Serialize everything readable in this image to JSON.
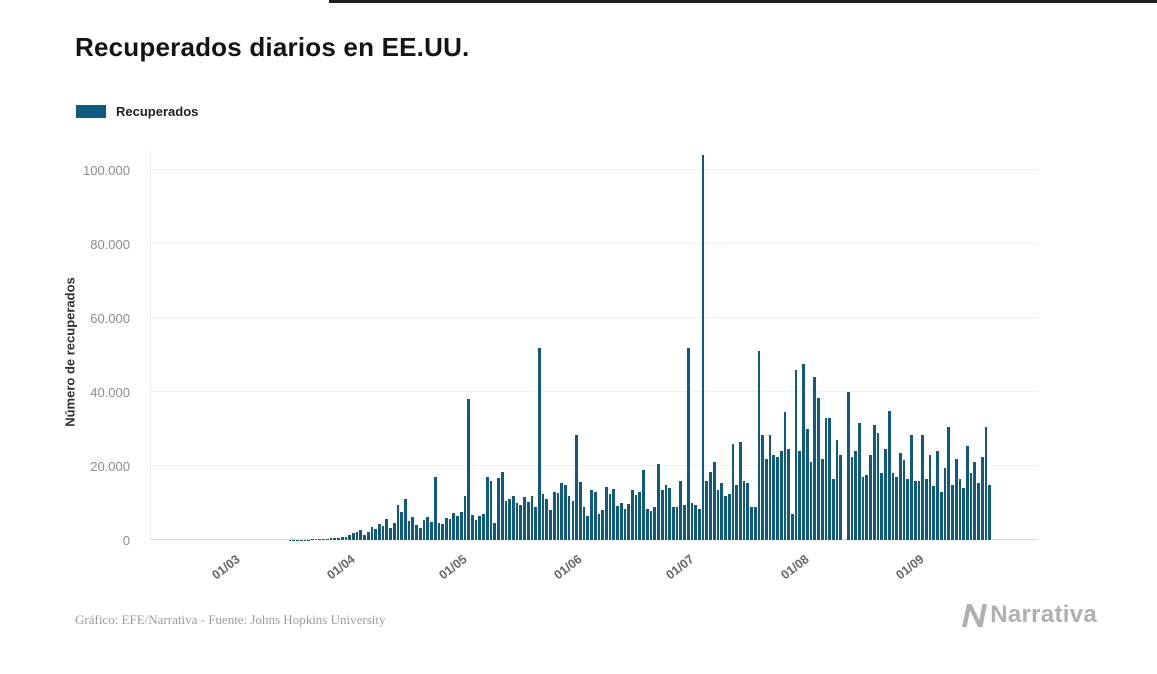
{
  "page": {
    "title": "Recuperados diarios en EE.UU.",
    "legend": {
      "label": "Recuperados",
      "color": "#0e5a80"
    },
    "y_axis_label": "Número de recuperados",
    "footer": {
      "credit": "Gráfico: EFE/Narrativa - Fuente: Johns Hopkins University",
      "brand": "Narrativa"
    }
  },
  "chart_data": {
    "type": "bar",
    "title": "Recuperados diarios en EE.UU.",
    "xlabel": "",
    "ylabel": "Número de recuperados",
    "ylim": [
      0,
      100000
    ],
    "grid": true,
    "legend_position": "top-left",
    "bar_color": "#0e5a80",
    "y_ticks": [
      0,
      20000,
      40000,
      60000,
      80000,
      100000
    ],
    "y_tick_labels": [
      "0",
      "20.000",
      "40.000",
      "60.000",
      "80.000",
      "100.000"
    ],
    "x_tick_labels": [
      "01/03",
      "01/04",
      "01/05",
      "01/06",
      "01/07",
      "01/08",
      "01/09"
    ],
    "x_tick_indices": [
      22,
      53,
      83,
      114,
      144,
      175,
      206
    ],
    "series": [
      {
        "name": "Recuperados",
        "color": "#0e5a80",
        "values": [
          0,
          0,
          0,
          0,
          0,
          0,
          0,
          0,
          0,
          0,
          0,
          0,
          0,
          0,
          0,
          0,
          0,
          0,
          0,
          0,
          0,
          0,
          0,
          0,
          0,
          0,
          0,
          0,
          0,
          0,
          0,
          0,
          8,
          10,
          12,
          15,
          20,
          25,
          30,
          40,
          60,
          90,
          120,
          160,
          200,
          250,
          300,
          360,
          420,
          500,
          600,
          700,
          900,
          1300,
          1800,
          2100,
          2600,
          1400,
          2200,
          3400,
          3000,
          4400,
          3700,
          5800,
          3200,
          4600,
          9500,
          7600,
          11000,
          5200,
          6300,
          4000,
          3300,
          5500,
          6200,
          5000,
          17000,
          4500,
          4200,
          6000,
          5600,
          7200,
          6500,
          7500,
          12000,
          38000,
          6800,
          5500,
          6600,
          7000,
          17000,
          16000,
          4500,
          16800,
          18500,
          10500,
          11000,
          12000,
          10000,
          9500,
          11500,
          10200,
          11800,
          9000,
          52000,
          12500,
          11000,
          8000,
          13000,
          12800,
          15500,
          15000,
          12000,
          10500,
          28500,
          15800,
          9000,
          6500,
          13600,
          13000,
          7000,
          8000,
          14200,
          12500,
          13800,
          9200,
          10000,
          8300,
          9800,
          13500,
          12200,
          13000,
          19000,
          8500,
          7800,
          9000,
          20500,
          13500,
          15000,
          14000,
          9000,
          8800,
          16000,
          9500,
          52000,
          10000,
          9500,
          8500,
          104000,
          16000,
          18500,
          21000,
          13500,
          15500,
          12000,
          12500,
          26000,
          15000,
          26500,
          16000,
          15500,
          9000,
          8800,
          51000,
          28500,
          22000,
          28500,
          23000,
          22500,
          24000,
          34500,
          24500,
          7000,
          46000,
          24000,
          47500,
          30000,
          21000,
          44000,
          38500,
          22000,
          33000,
          33000,
          16500,
          27000,
          23000,
          0,
          40000,
          22500,
          24000,
          31500,
          17000,
          17500,
          23000,
          31000,
          29000,
          18000,
          24500,
          35000,
          18000,
          17000,
          23500,
          21500,
          16500,
          28500,
          16000,
          16000,
          28500,
          16500,
          23000,
          14500,
          24000,
          13000,
          19500,
          30500,
          15000,
          22000,
          16500,
          14000,
          25500,
          18000,
          21000,
          15500,
          22500,
          30500,
          15000
        ]
      }
    ]
  }
}
